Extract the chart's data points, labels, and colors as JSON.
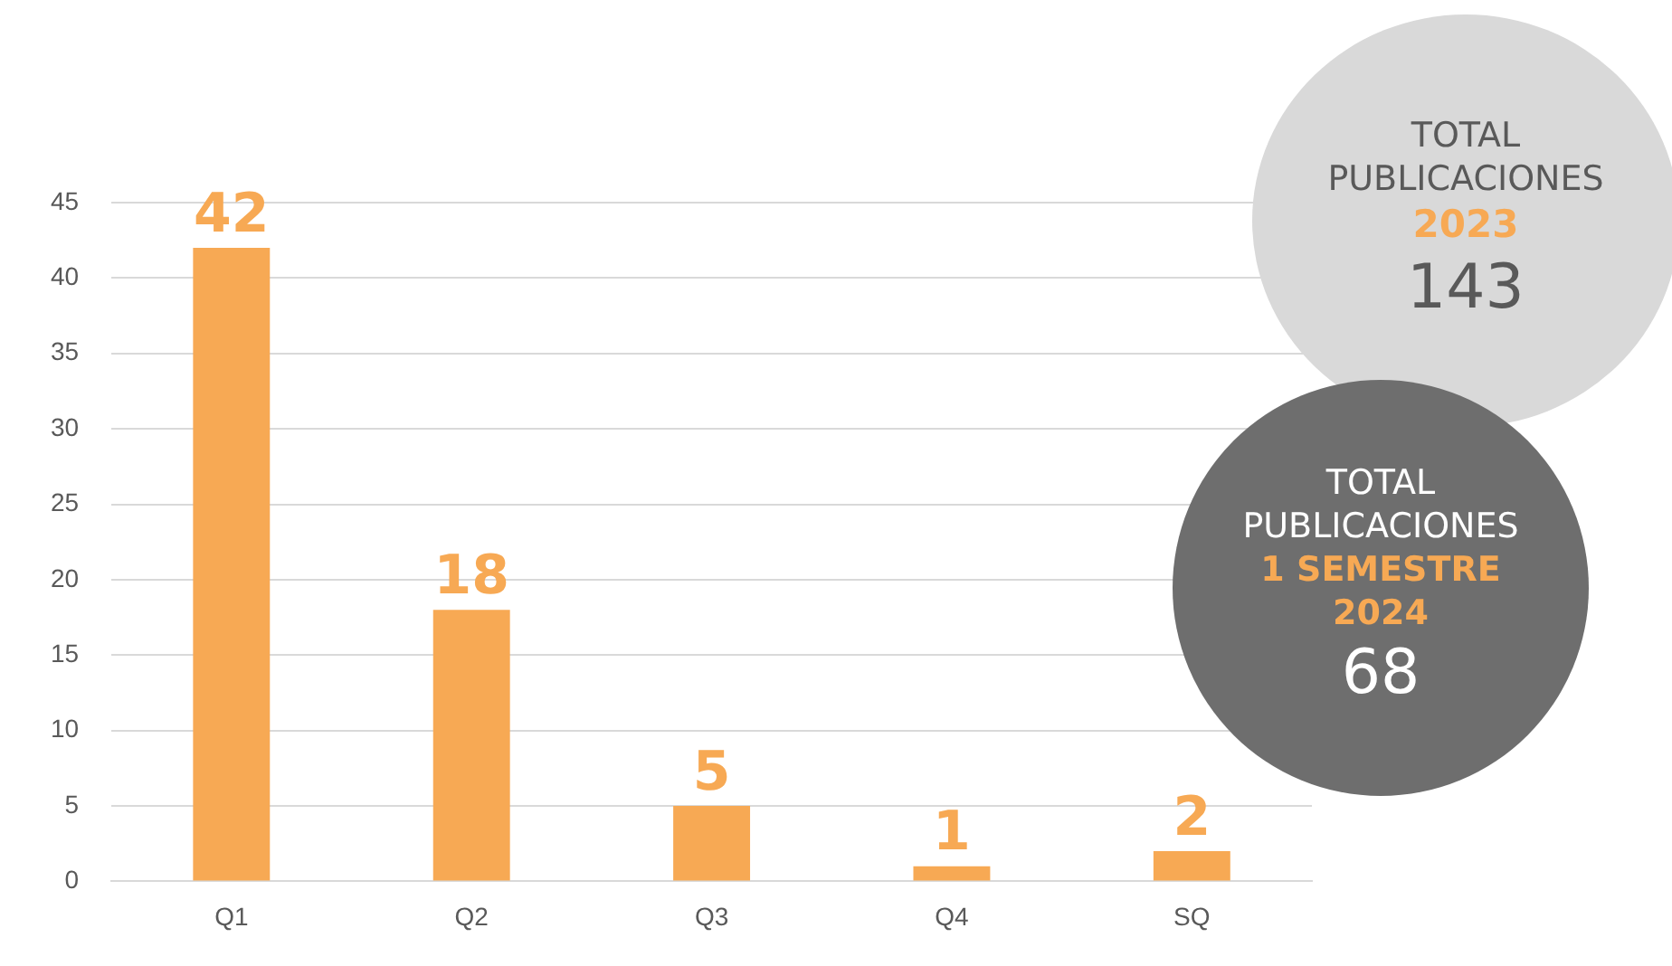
{
  "chart_data": {
    "type": "bar",
    "categories": [
      "Q1",
      "Q2",
      "Q3",
      "Q4",
      "SQ"
    ],
    "values": [
      42,
      18,
      5,
      1,
      2
    ],
    "color": "#f7a954",
    "ylim": [
      0,
      45
    ],
    "yticks": [
      0,
      5,
      10,
      15,
      20,
      25,
      30,
      35,
      40,
      45
    ],
    "grid": "y",
    "data_labels": true,
    "legend": false,
    "annotations": [
      "TOTAL",
      "PUBLICACIONES",
      "2023",
      "143",
      "TOTAL",
      "PUBLICACIONES",
      "1 SEMESTRE",
      "2024",
      "68"
    ]
  }
}
